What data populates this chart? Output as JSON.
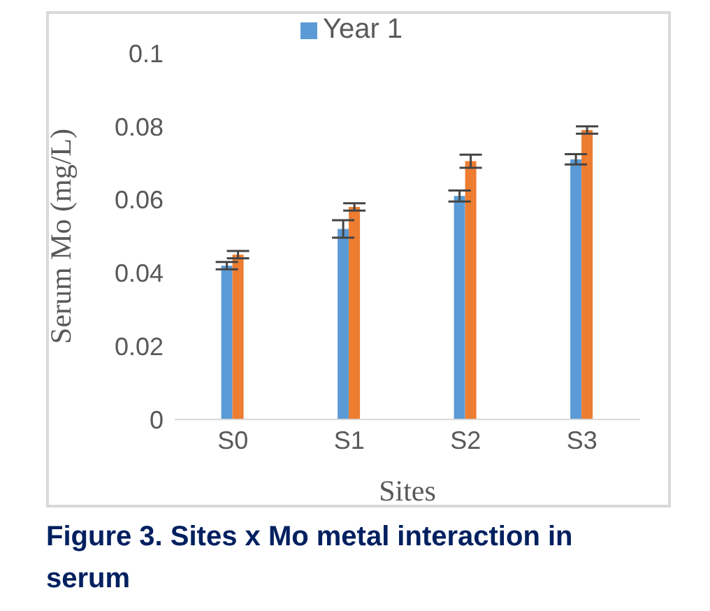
{
  "chart_data": {
    "type": "bar",
    "xlabel": "Sites",
    "ylabel": "Serum Mo (mg/L)",
    "categories": [
      "S0",
      "S1",
      "S2",
      "S3"
    ],
    "series": [
      {
        "name": "Year 1",
        "color": "#5b9bd5",
        "values": [
          0.042,
          0.052,
          0.061,
          0.071
        ],
        "errors": [
          0.001,
          0.0024,
          0.0015,
          0.0014
        ]
      },
      {
        "color": "#ed7d31",
        "values": [
          0.045,
          0.058,
          0.0705,
          0.079
        ],
        "errors": [
          0.001,
          0.001,
          0.0018,
          0.001
        ]
      }
    ],
    "ylim": [
      0,
      0.1
    ],
    "yticks": [
      0,
      0.02,
      0.04,
      0.06,
      0.08,
      0.1
    ],
    "grid": false,
    "legend": "top",
    "annotations": [
      "Figure 3. Sites x Mo metal interaction in serum"
    ]
  }
}
